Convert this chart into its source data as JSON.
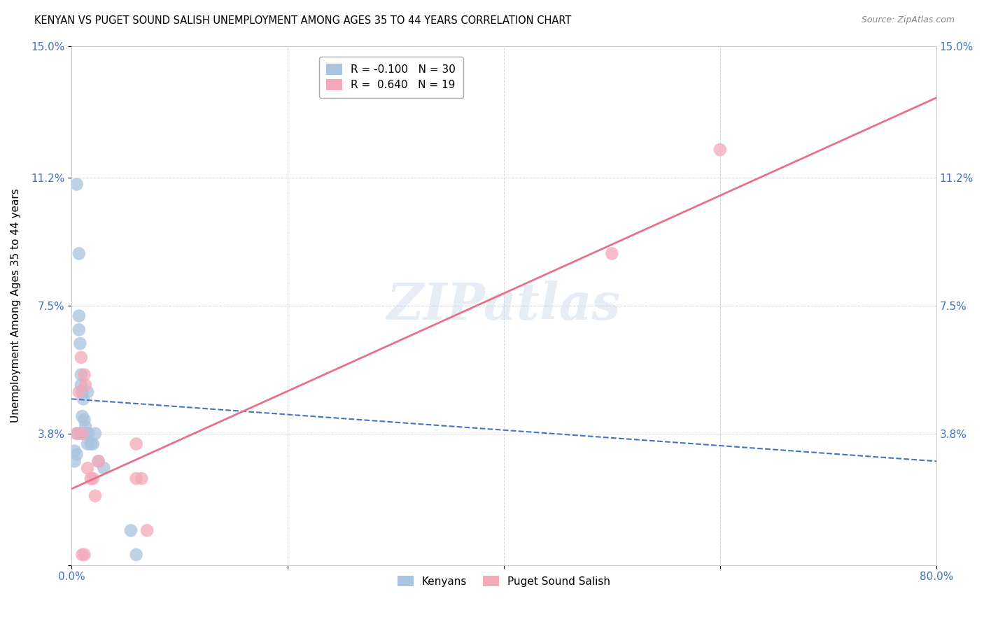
{
  "title": "KENYAN VS PUGET SOUND SALISH UNEMPLOYMENT AMONG AGES 35 TO 44 YEARS CORRELATION CHART",
  "source": "Source: ZipAtlas.com",
  "ylabel": "Unemployment Among Ages 35 to 44 years",
  "xlabel": "",
  "xlim": [
    0.0,
    0.8
  ],
  "ylim": [
    0.0,
    0.15
  ],
  "yticks": [
    0.0,
    0.038,
    0.075,
    0.112,
    0.15
  ],
  "ytick_labels": [
    "",
    "3.8%",
    "7.5%",
    "11.2%",
    "15.0%"
  ],
  "xticks": [
    0.0,
    0.2,
    0.4,
    0.6,
    0.8
  ],
  "xtick_labels": [
    "0.0%",
    "",
    "",
    "",
    "80.0%"
  ],
  "kenyan_R": -0.1,
  "kenyan_N": 30,
  "puget_R": 0.64,
  "puget_N": 19,
  "kenyan_color": "#a8c4e0",
  "puget_color": "#f4a8b8",
  "kenyan_line_color": "#4472c4",
  "puget_line_color": "#e8708a",
  "watermark": "ZIPatlas",
  "kenyan_x": [
    0.003,
    0.003,
    0.005,
    0.005,
    0.005,
    0.007,
    0.007,
    0.007,
    0.008,
    0.008,
    0.009,
    0.009,
    0.01,
    0.01,
    0.01,
    0.011,
    0.012,
    0.012,
    0.013,
    0.014,
    0.015,
    0.015,
    0.016,
    0.018,
    0.02,
    0.022,
    0.025,
    0.03,
    0.055,
    0.06
  ],
  "kenyan_y": [
    0.033,
    0.03,
    0.11,
    0.038,
    0.032,
    0.09,
    0.072,
    0.068,
    0.064,
    0.038,
    0.055,
    0.052,
    0.05,
    0.043,
    0.038,
    0.048,
    0.042,
    0.038,
    0.04,
    0.038,
    0.05,
    0.035,
    0.038,
    0.035,
    0.035,
    0.038,
    0.03,
    0.028,
    0.01,
    0.003
  ],
  "puget_x": [
    0.005,
    0.007,
    0.009,
    0.01,
    0.012,
    0.013,
    0.015,
    0.018,
    0.02,
    0.022,
    0.025,
    0.06,
    0.065,
    0.07,
    0.5,
    0.6,
    0.01,
    0.012,
    0.06
  ],
  "puget_y": [
    0.038,
    0.05,
    0.06,
    0.038,
    0.055,
    0.052,
    0.028,
    0.025,
    0.025,
    0.02,
    0.03,
    0.025,
    0.025,
    0.01,
    0.09,
    0.12,
    0.003,
    0.003,
    0.035
  ],
  "kenyan_line_x0": 0.0,
  "kenyan_line_x1": 0.8,
  "kenyan_line_y0": 0.048,
  "kenyan_line_y1": 0.03,
  "puget_line_x0": 0.0,
  "puget_line_x1": 0.8,
  "puget_line_y0": 0.022,
  "puget_line_y1": 0.135
}
